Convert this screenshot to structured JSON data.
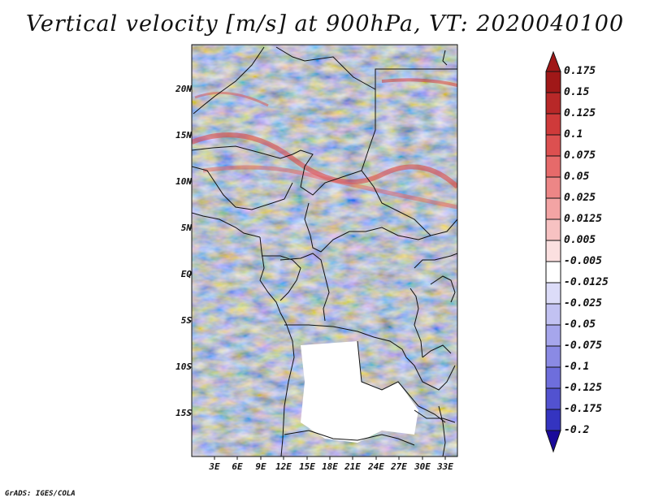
{
  "title": "Vertical velocity [m/s] at 900hPa, VT: 2020040100",
  "credit": "GrADS: IGES/COLA",
  "map": {
    "region": "Central Africa",
    "field": "Vertical velocity",
    "level": "900hPa",
    "valid_time": "2020040100",
    "lon_range": [
      0,
      34.5
    ],
    "lat_range": [
      -19.5,
      24.5
    ],
    "lat_ticks": [
      {
        "value": 20,
        "label": "20N"
      },
      {
        "value": 15,
        "label": "15N"
      },
      {
        "value": 10,
        "label": "10N"
      },
      {
        "value": 5,
        "label": "5N"
      },
      {
        "value": 0,
        "label": "EQ"
      },
      {
        "value": -5,
        "label": "5S"
      },
      {
        "value": -10,
        "label": "10S"
      },
      {
        "value": -15,
        "label": "15S"
      }
    ],
    "lon_ticks": [
      {
        "value": 3,
        "label": "3E"
      },
      {
        "value": 6,
        "label": "6E"
      },
      {
        "value": 9,
        "label": "9E"
      },
      {
        "value": 12,
        "label": "12E"
      },
      {
        "value": 15,
        "label": "15E"
      },
      {
        "value": 18,
        "label": "18E"
      },
      {
        "value": 21,
        "label": "21E"
      },
      {
        "value": 24,
        "label": "24E"
      },
      {
        "value": 27,
        "label": "27E"
      },
      {
        "value": 30,
        "label": "30E"
      },
      {
        "value": 33,
        "label": "33E"
      }
    ]
  },
  "colorbar": {
    "levels": [
      {
        "label": "0.175",
        "color": "#a01818"
      },
      {
        "label": "0.15",
        "color": "#b82828"
      },
      {
        "label": "0.125",
        "color": "#cf3a3a"
      },
      {
        "label": "0.1",
        "color": "#dc5050"
      },
      {
        "label": "0.075",
        "color": "#e66a6a"
      },
      {
        "label": "0.05",
        "color": "#ed8686"
      },
      {
        "label": "0.025",
        "color": "#f3a4a4"
      },
      {
        "label": "0.0125",
        "color": "#f7c2c2"
      },
      {
        "label": "0.005",
        "color": "#fbe0e0"
      },
      {
        "label": "-0.005",
        "color": "#ffffff"
      },
      {
        "label": "-0.0125",
        "color": "#dcdcf8"
      },
      {
        "label": "-0.025",
        "color": "#c2c2f2"
      },
      {
        "label": "-0.05",
        "color": "#a6a6ec"
      },
      {
        "label": "-0.075",
        "color": "#8a8ae4"
      },
      {
        "label": "-0.1",
        "color": "#6e6edc"
      },
      {
        "label": "-0.125",
        "color": "#5252d0"
      },
      {
        "label": "-0.175",
        "color": "#3434c0"
      },
      {
        "label": "-0.2",
        "color": "#1c1ca8"
      }
    ],
    "bottom_color": "#1a0a9a"
  }
}
